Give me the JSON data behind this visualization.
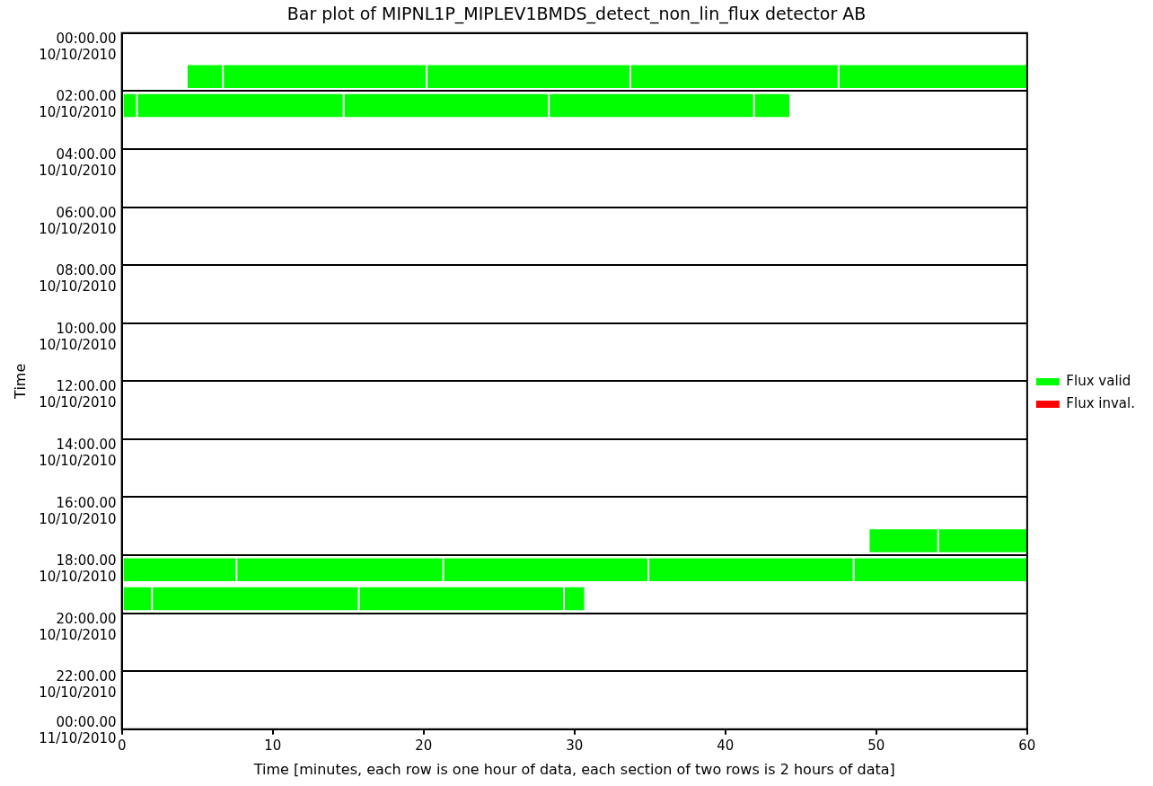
{
  "chart_data": {
    "type": "bar",
    "orientation": "horizontal",
    "title": "Bar plot of MIPNL1P_MIPLEV1BMDS_detect_non_lin_flux detector AB",
    "xlabel": "Time [minutes, each row is one hour of data, each section of two rows is 2 hours of data]",
    "ylabel": "Time",
    "xlim": [
      0,
      60
    ],
    "xticks": [
      0,
      10,
      20,
      30,
      40,
      50,
      60
    ],
    "categories": [
      "00:00.00\n10/10/2010",
      null,
      "02:00.00\n10/10/2010",
      null,
      "04:00.00\n10/10/2010",
      null,
      "06:00.00\n10/10/2010",
      null,
      "08:00.00\n10/10/2010",
      null,
      "10:00.00\n10/10/2010",
      null,
      "12:00.00\n10/10/2010",
      null,
      "14:00.00\n10/10/2010",
      null,
      "16:00.00\n10/10/2010",
      null,
      "18:00.00\n10/10/2010",
      null,
      "20:00.00\n10/10/2010",
      null,
      "22:00.00\n10/10/2010",
      null
    ],
    "annotations": [
      "00:00.00\n11/10/2010"
    ],
    "grid": "y",
    "legend": "right",
    "series": [
      {
        "name": "Flux valid",
        "color": "#00ff00",
        "base": [
          null,
          4.3,
          0,
          null,
          null,
          null,
          null,
          null,
          null,
          null,
          null,
          null,
          null,
          null,
          null,
          null,
          null,
          49.5,
          0,
          0,
          null,
          null,
          null,
          null
        ],
        "values": [
          null,
          2.4,
          1.0,
          null,
          null,
          null,
          null,
          null,
          null,
          null,
          null,
          null,
          null,
          null,
          null,
          null,
          null,
          4.6,
          7.6,
          2.0,
          null,
          null,
          null,
          null
        ]
      },
      {
        "color": "#00ff00",
        "base": [
          null,
          6.7,
          1.0,
          null,
          null,
          null,
          null,
          null,
          null,
          null,
          null,
          null,
          null,
          null,
          null,
          null,
          null,
          54.1,
          7.6,
          2.0,
          null,
          null,
          null,
          null
        ],
        "values": [
          null,
          13.5,
          13.7,
          null,
          null,
          null,
          null,
          null,
          null,
          null,
          null,
          null,
          null,
          null,
          null,
          null,
          null,
          5.9,
          13.7,
          13.7,
          null,
          null,
          null,
          null
        ]
      },
      {
        "color": "#00ff00",
        "base": [
          null,
          20.2,
          14.7,
          null,
          null,
          null,
          null,
          null,
          null,
          null,
          null,
          null,
          null,
          null,
          null,
          null,
          null,
          null,
          21.3,
          15.7,
          null,
          null,
          null,
          null
        ],
        "values": [
          null,
          13.5,
          13.6,
          null,
          null,
          null,
          null,
          null,
          null,
          null,
          null,
          null,
          null,
          null,
          null,
          null,
          null,
          null,
          13.6,
          13.6,
          null,
          null,
          null,
          null
        ]
      },
      {
        "color": "#00ff00",
        "base": [
          null,
          33.7,
          28.3,
          null,
          null,
          null,
          null,
          null,
          null,
          null,
          null,
          null,
          null,
          null,
          null,
          null,
          null,
          null,
          34.9,
          29.3,
          null,
          null,
          null,
          null
        ],
        "values": [
          null,
          13.8,
          13.6,
          null,
          null,
          null,
          null,
          null,
          null,
          null,
          null,
          null,
          null,
          null,
          null,
          null,
          null,
          null,
          13.6,
          1.4,
          null,
          null,
          null,
          null
        ]
      },
      {
        "color": "#00ff00",
        "base": [
          null,
          47.5,
          41.9,
          null,
          null,
          null,
          null,
          null,
          null,
          null,
          null,
          null,
          null,
          null,
          null,
          null,
          null,
          null,
          48.5,
          null,
          null,
          null,
          null,
          null
        ],
        "values": [
          null,
          12.5,
          2.4,
          null,
          null,
          null,
          null,
          null,
          null,
          null,
          null,
          null,
          null,
          null,
          null,
          null,
          null,
          null,
          11.5,
          null,
          null,
          null,
          null,
          null
        ]
      },
      {
        "name": "Flux inval.",
        "color": "#ff0000",
        "values": [
          null,
          null,
          null,
          null,
          null,
          null,
          null,
          null,
          null,
          null,
          null,
          null,
          null,
          null,
          null,
          null,
          null,
          null,
          null,
          null,
          null,
          null,
          null,
          null
        ]
      }
    ]
  }
}
